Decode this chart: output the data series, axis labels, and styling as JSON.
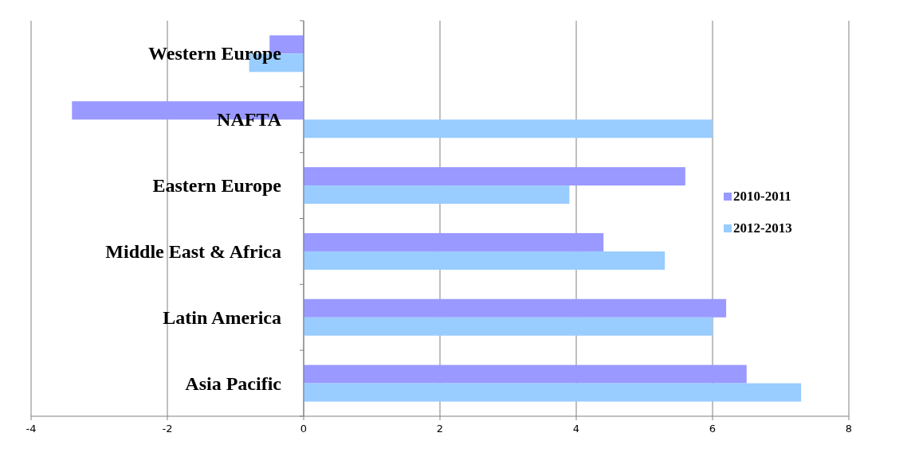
{
  "chart_data": {
    "type": "bar",
    "orientation": "horizontal",
    "categories": [
      "Western Europe",
      "NAFTA",
      "Eastern Europe",
      "Middle East & Africa",
      "Latin America",
      "Asia Pacific"
    ],
    "series": [
      {
        "name": "2010-2011",
        "color": "#9999ff",
        "values": [
          -0.5,
          -3.4,
          5.6,
          4.4,
          6.2,
          6.5
        ]
      },
      {
        "name": "2012-2013",
        "color": "#99ccff",
        "values": [
          -0.8,
          6.0,
          3.9,
          5.3,
          6.0,
          7.3
        ]
      }
    ],
    "xlim": [
      -4,
      8
    ],
    "xticks": [
      -4,
      -2,
      0,
      2,
      4,
      6,
      8
    ],
    "grid": "x",
    "legend": "right"
  }
}
